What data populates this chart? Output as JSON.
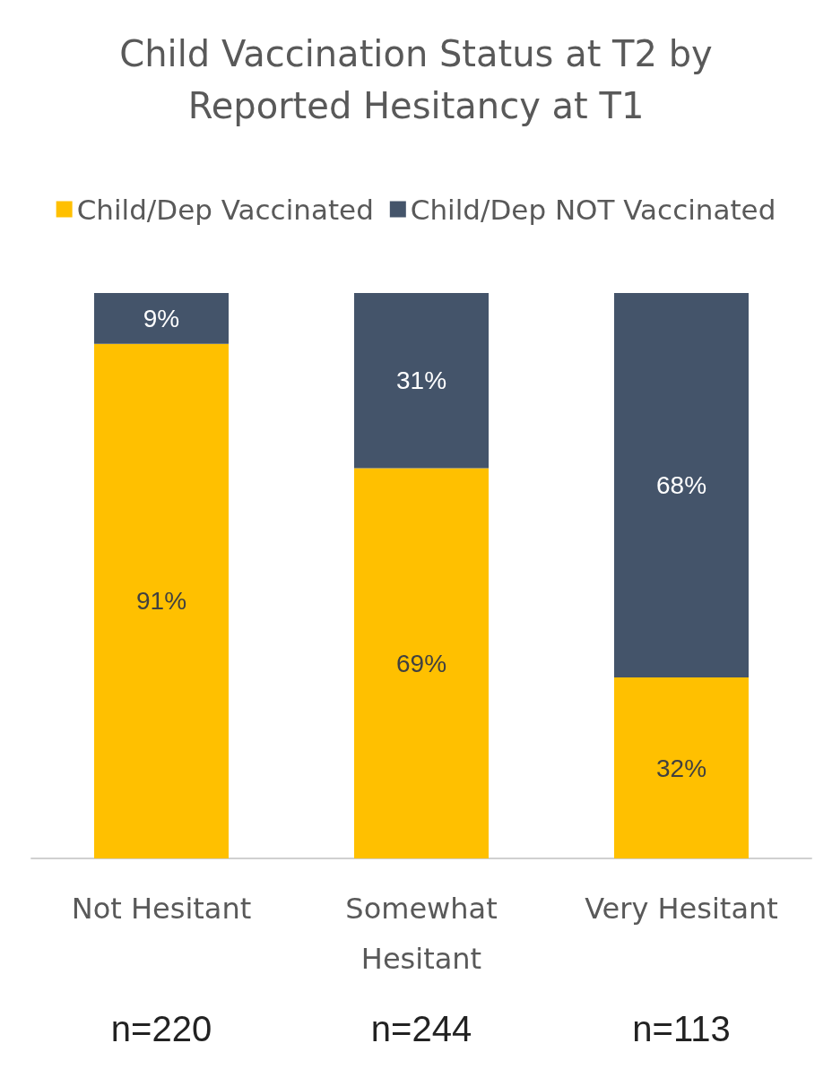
{
  "chart_data": {
    "type": "bar",
    "title": "Child Vaccination Status at T2 by\nReported Hesitancy at T1",
    "categories": [
      "Not Hesitant",
      "Somewhat\nHesitant",
      "Very Hesitant"
    ],
    "series": [
      {
        "name": "Child/Dep Vaccinated",
        "color": "#ffc000",
        "values": [
          91,
          69,
          32
        ],
        "value_labels": [
          "91%",
          "69%",
          "32%"
        ]
      },
      {
        "name": "Child/Dep NOT Vaccinated",
        "color": "#44546a",
        "values": [
          9,
          31,
          68
        ],
        "value_labels": [
          "9%",
          "31%",
          "68%"
        ]
      }
    ],
    "stacked": true,
    "legend": "top",
    "tick_labels": "x",
    "annotations": [
      "n=220",
      "n=244",
      "n=113"
    ]
  }
}
